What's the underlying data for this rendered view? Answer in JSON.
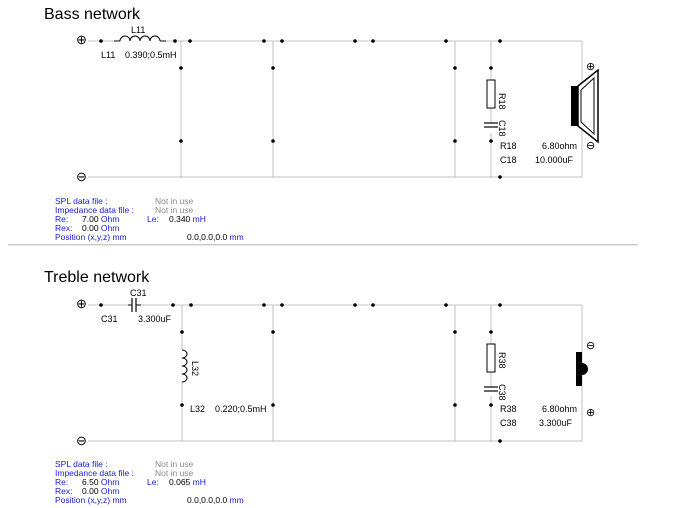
{
  "bass": {
    "title": "Bass network",
    "inductor": {
      "ref": "L11",
      "label": "L11",
      "value": "0.390;0.5",
      "unit": "mH"
    },
    "resistor": {
      "ref": "R18",
      "label": "R18",
      "value": "6.80",
      "unit": "ohm"
    },
    "capacitor": {
      "ref": "C18",
      "label": "C18",
      "value": "10.000",
      "unit": "uF"
    },
    "info": {
      "spl_label": "SPL data file :",
      "spl_value": "Not in use",
      "imp_label": "Impedance data file :",
      "imp_value": "Not in use",
      "re_label": "Re:",
      "re_value": "7.00",
      "re_unit": "Ohm",
      "le_label": "Le:",
      "le_value": "0.340",
      "le_unit": "mH",
      "rex_label": "Rex:",
      "rex_value": "0.00",
      "rex_unit": "Ohm",
      "pos_label": "Position (x,y,z) mm",
      "pos_value": "0.0,0.0,0.0",
      "pos_unit": "mm"
    }
  },
  "treble": {
    "title": "Treble network",
    "capacitor_series": {
      "ref": "C31",
      "label": "C31",
      "value": "3.300",
      "unit": "uF"
    },
    "inductor": {
      "ref": "L32",
      "label": "L32",
      "value": "0.220;0.5",
      "unit": "mH"
    },
    "resistor": {
      "ref": "R38",
      "label": "R38",
      "value": "6.80",
      "unit": "ohm"
    },
    "capacitor": {
      "ref": "C38",
      "label": "C38",
      "value": "3.300",
      "unit": "uF"
    },
    "info": {
      "spl_label": "SPL data file :",
      "spl_value": "Not in use",
      "imp_label": "Impedance data file :",
      "imp_value": "Not in use",
      "re_label": "Re:",
      "re_value": "6.50",
      "re_unit": "Ohm",
      "le_label": "Le:",
      "le_value": "0.065",
      "le_unit": "mH",
      "rex_label": "Rex:",
      "rex_value": "0.00",
      "rex_unit": "Ohm",
      "pos_label": "Position (x,y,z) mm",
      "pos_value": "0.0,0.0,0.0",
      "pos_unit": "mm"
    }
  },
  "symbols": {
    "plus": "⊕",
    "minus": "⊖"
  },
  "colors": {
    "info_label": "#1a1ad6",
    "info_gray": "#8a8a8a",
    "wire": "#c0c0c0"
  }
}
